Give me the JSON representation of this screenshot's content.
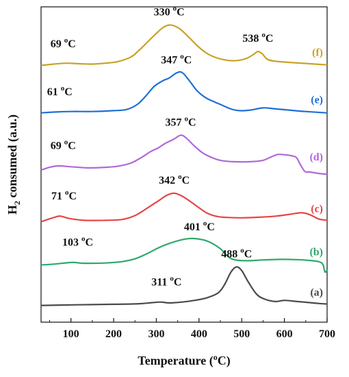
{
  "chart_data": {
    "type": "line",
    "title": "",
    "xlabel": "Temperature (",
    "xlabel_sup": "o",
    "xlabel_end": "C)",
    "ylabel_main": "H",
    "ylabel_sub": "2",
    "ylabel_rest": " consumed (a.u.)",
    "xlim": [
      30,
      700
    ],
    "xticks": [
      100,
      200,
      300,
      400,
      500,
      600,
      700
    ],
    "y_ticks": false,
    "grid": false,
    "legend": "right-inline",
    "series": [
      {
        "name": "(f)",
        "color": "#C9A227",
        "offset": 8.6,
        "points": [
          [
            30,
            0.0
          ],
          [
            60,
            0.05
          ],
          [
            90,
            0.08
          ],
          [
            120,
            0.06
          ],
          [
            150,
            0.05
          ],
          [
            180,
            0.08
          ],
          [
            210,
            0.14
          ],
          [
            240,
            0.3
          ],
          [
            260,
            0.55
          ],
          [
            280,
            0.85
          ],
          [
            300,
            1.15
          ],
          [
            315,
            1.35
          ],
          [
            330,
            1.45
          ],
          [
            345,
            1.4
          ],
          [
            360,
            1.25
          ],
          [
            380,
            0.95
          ],
          [
            400,
            0.65
          ],
          [
            420,
            0.42
          ],
          [
            440,
            0.28
          ],
          [
            460,
            0.2
          ],
          [
            480,
            0.17
          ],
          [
            500,
            0.2
          ],
          [
            515,
            0.28
          ],
          [
            530,
            0.42
          ],
          [
            538,
            0.5
          ],
          [
            548,
            0.42
          ],
          [
            560,
            0.22
          ],
          [
            580,
            0.15
          ],
          [
            620,
            0.1
          ],
          [
            660,
            0.06
          ],
          [
            700,
            0.02
          ]
        ],
        "annotations": [
          {
            "x": 330,
            "text": "330",
            "unit": "C"
          },
          {
            "x": 538,
            "text": "538",
            "unit": "C"
          },
          {
            "x": 69,
            "text": "69",
            "unit": "C"
          }
        ]
      },
      {
        "name": "(e)",
        "color": "#1F6FD6",
        "offset": 6.9,
        "points": [
          [
            30,
            0.0
          ],
          [
            60,
            0.03
          ],
          [
            100,
            0.05
          ],
          [
            150,
            0.05
          ],
          [
            200,
            0.08
          ],
          [
            230,
            0.12
          ],
          [
            255,
            0.3
          ],
          [
            275,
            0.6
          ],
          [
            295,
            0.95
          ],
          [
            315,
            1.15
          ],
          [
            330,
            1.25
          ],
          [
            347,
            1.43
          ],
          [
            360,
            1.45
          ],
          [
            375,
            1.2
          ],
          [
            395,
            0.8
          ],
          [
            415,
            0.55
          ],
          [
            435,
            0.4
          ],
          [
            455,
            0.27
          ],
          [
            475,
            0.14
          ],
          [
            495,
            0.08
          ],
          [
            520,
            0.1
          ],
          [
            550,
            0.18
          ],
          [
            575,
            0.15
          ],
          [
            610,
            0.1
          ],
          [
            650,
            0.05
          ],
          [
            700,
            0.0
          ]
        ],
        "annotations": [
          {
            "x": 347,
            "text": "347",
            "unit": "C"
          },
          {
            "x": 61,
            "text": "61",
            "unit": "C"
          }
        ]
      },
      {
        "name": "(d)",
        "color": "#B068D9",
        "offset": 4.85,
        "points": [
          [
            30,
            0.0
          ],
          [
            50,
            0.1
          ],
          [
            70,
            0.15
          ],
          [
            100,
            0.12
          ],
          [
            140,
            0.08
          ],
          [
            180,
            0.1
          ],
          [
            210,
            0.14
          ],
          [
            240,
            0.25
          ],
          [
            265,
            0.45
          ],
          [
            285,
            0.65
          ],
          [
            305,
            0.8
          ],
          [
            320,
            0.95
          ],
          [
            340,
            1.1
          ],
          [
            357,
            1.25
          ],
          [
            370,
            1.15
          ],
          [
            390,
            0.85
          ],
          [
            410,
            0.6
          ],
          [
            430,
            0.45
          ],
          [
            450,
            0.35
          ],
          [
            480,
            0.3
          ],
          [
            520,
            0.3
          ],
          [
            550,
            0.35
          ],
          [
            570,
            0.48
          ],
          [
            585,
            0.56
          ],
          [
            600,
            0.55
          ],
          [
            615,
            0.52
          ],
          [
            628,
            0.45
          ],
          [
            638,
            0.18
          ],
          [
            648,
            -0.05
          ],
          [
            660,
            -0.07
          ],
          [
            680,
            -0.12
          ],
          [
            700,
            -0.15
          ]
        ],
        "annotations": [
          {
            "x": 357,
            "text": "357",
            "unit": "C"
          },
          {
            "x": 69,
            "text": "69",
            "unit": "C"
          }
        ]
      },
      {
        "name": "(c)",
        "color": "#E64545",
        "offset": 3.0,
        "points": [
          [
            30,
            0.0
          ],
          [
            60,
            0.15
          ],
          [
            75,
            0.2
          ],
          [
            95,
            0.12
          ],
          [
            130,
            0.05
          ],
          [
            180,
            0.05
          ],
          [
            220,
            0.08
          ],
          [
            250,
            0.22
          ],
          [
            280,
            0.5
          ],
          [
            305,
            0.75
          ],
          [
            325,
            0.95
          ],
          [
            342,
            1.02
          ],
          [
            360,
            0.92
          ],
          [
            380,
            0.72
          ],
          [
            400,
            0.5
          ],
          [
            420,
            0.3
          ],
          [
            445,
            0.18
          ],
          [
            470,
            0.15
          ],
          [
            500,
            0.14
          ],
          [
            540,
            0.16
          ],
          [
            580,
            0.2
          ],
          [
            610,
            0.26
          ],
          [
            640,
            0.32
          ],
          [
            660,
            0.25
          ],
          [
            680,
            0.1
          ],
          [
            700,
            0.05
          ]
        ],
        "annotations": [
          {
            "x": 342,
            "text": "342",
            "unit": "C"
          },
          {
            "x": 71,
            "text": "71",
            "unit": "C"
          }
        ]
      },
      {
        "name": "(b)",
        "color": "#2EA86B",
        "offset": 1.45,
        "points": [
          [
            30,
            0.0
          ],
          [
            60,
            0.03
          ],
          [
            103,
            0.09
          ],
          [
            130,
            0.06
          ],
          [
            180,
            0.07
          ],
          [
            220,
            0.12
          ],
          [
            250,
            0.22
          ],
          [
            280,
            0.42
          ],
          [
            310,
            0.65
          ],
          [
            340,
            0.82
          ],
          [
            365,
            0.92
          ],
          [
            385,
            0.95
          ],
          [
            410,
            0.9
          ],
          [
            430,
            0.78
          ],
          [
            450,
            0.58
          ],
          [
            465,
            0.35
          ],
          [
            480,
            0.2
          ],
          [
            510,
            0.15
          ],
          [
            550,
            0.18
          ],
          [
            590,
            0.2
          ],
          [
            630,
            0.19
          ],
          [
            660,
            0.16
          ],
          [
            680,
            0.12
          ],
          [
            690,
            0.02
          ],
          [
            695,
            -0.25
          ],
          [
            700,
            -0.18
          ]
        ],
        "annotations": [
          {
            "x": 401,
            "text": "401",
            "unit": "C"
          },
          {
            "x": 103,
            "text": "103",
            "unit": "C"
          }
        ]
      },
      {
        "name": "(a)",
        "color": "#4A4A4A",
        "offset": 0.0,
        "points": [
          [
            30,
            0.0
          ],
          [
            100,
            0.02
          ],
          [
            200,
            0.04
          ],
          [
            260,
            0.06
          ],
          [
            290,
            0.1
          ],
          [
            311,
            0.12
          ],
          [
            330,
            0.09
          ],
          [
            360,
            0.12
          ],
          [
            390,
            0.18
          ],
          [
            420,
            0.28
          ],
          [
            445,
            0.45
          ],
          [
            460,
            0.75
          ],
          [
            475,
            1.2
          ],
          [
            488,
            1.38
          ],
          [
            500,
            1.25
          ],
          [
            515,
            0.85
          ],
          [
            535,
            0.4
          ],
          [
            555,
            0.22
          ],
          [
            580,
            0.14
          ],
          [
            600,
            0.18
          ],
          [
            630,
            0.14
          ],
          [
            660,
            0.1
          ],
          [
            680,
            0.07
          ],
          [
            700,
            0.05
          ]
        ],
        "annotations": [
          {
            "x": 488,
            "text": "488",
            "unit": "C"
          },
          {
            "x": 311,
            "text": "311",
            "unit": "C"
          }
        ]
      }
    ]
  }
}
